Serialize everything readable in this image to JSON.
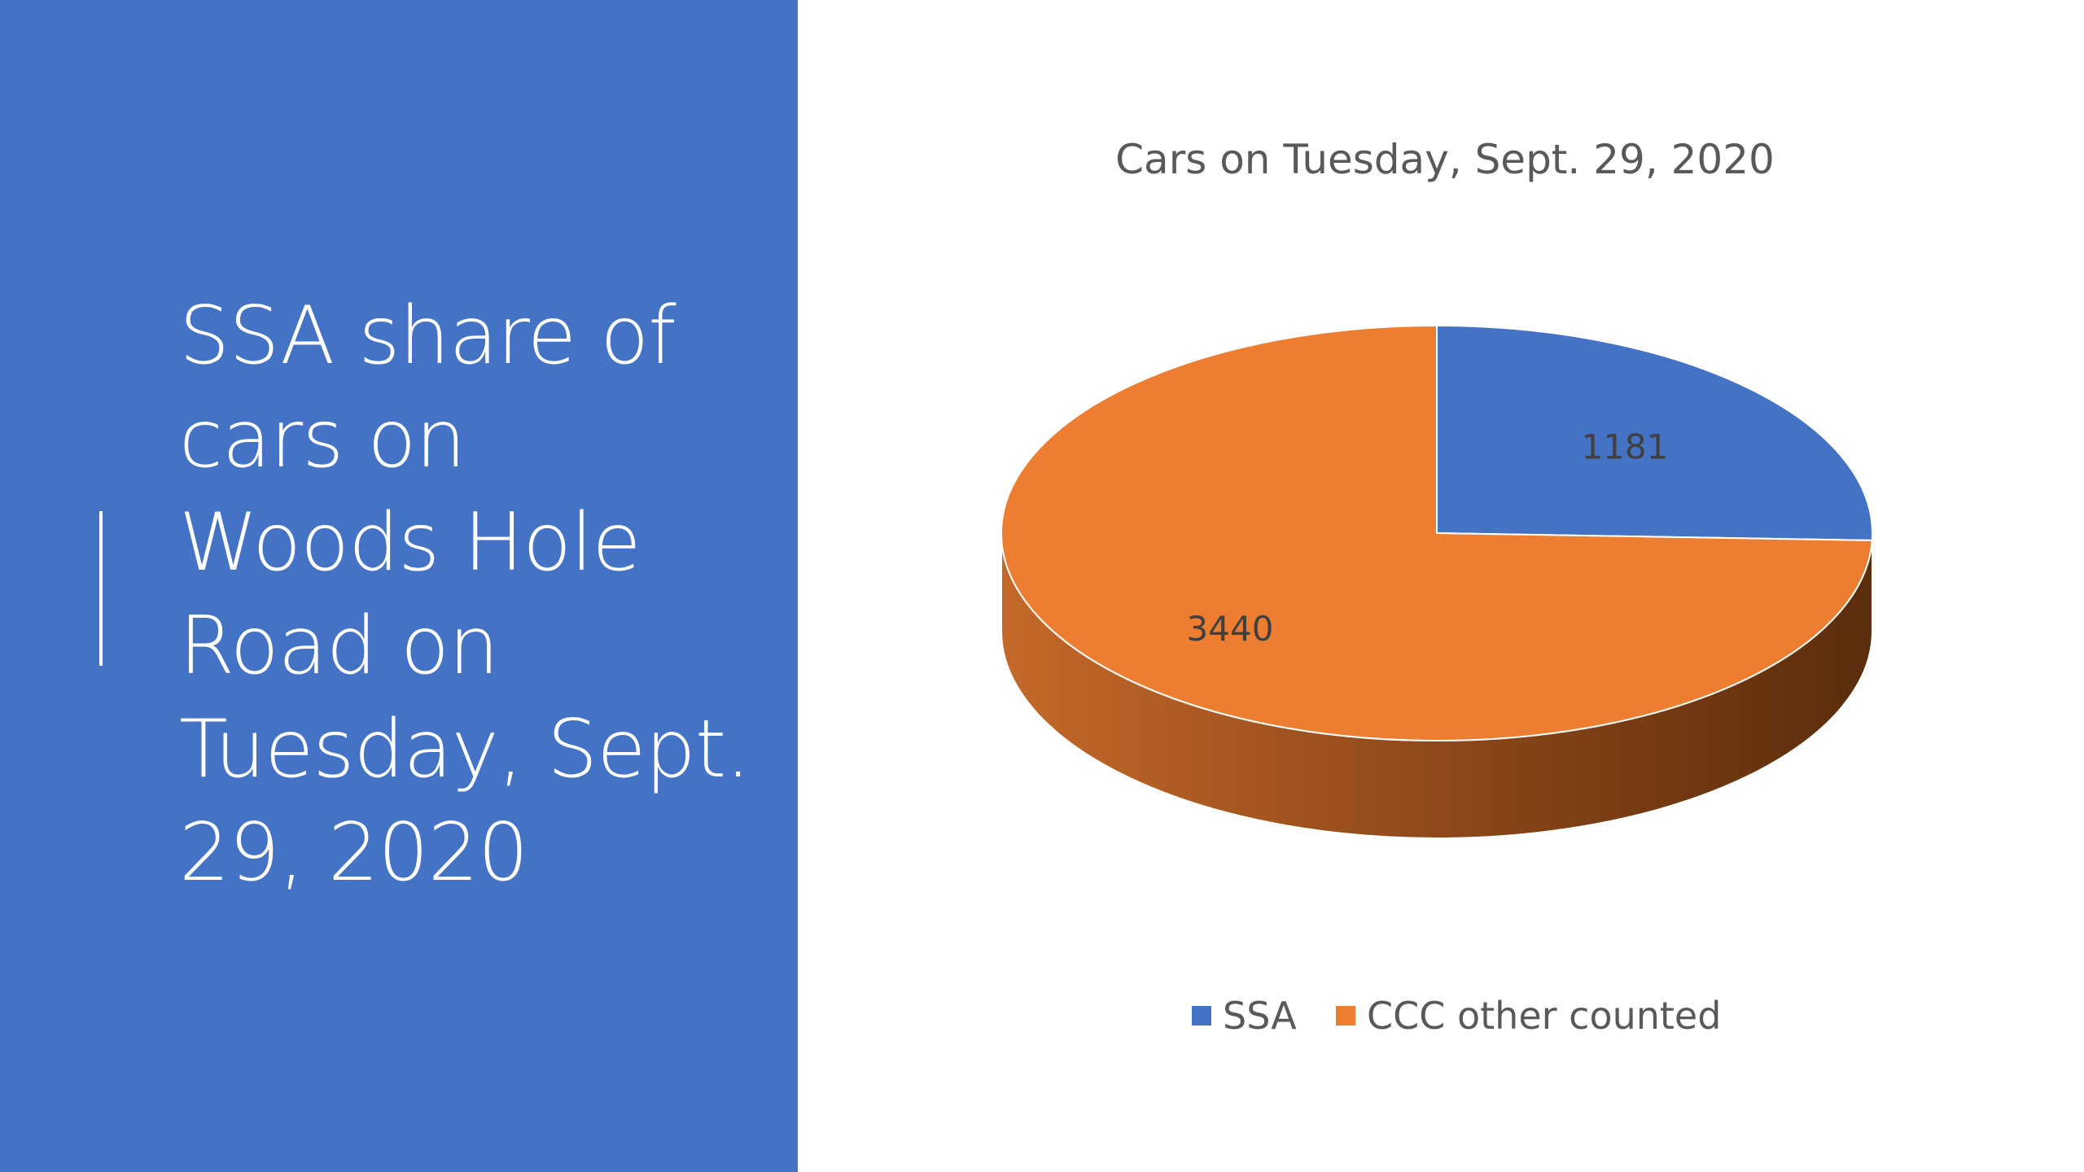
{
  "slide": {
    "title_lines": [
      "SSA share of",
      "cars on",
      "Woods Hole",
      "Road on",
      "Tuesday, Sept.",
      "29, 2020"
    ]
  },
  "colors": {
    "panel": "#4472c4",
    "ssa": "#4472c4",
    "ccc": "#ed7d31",
    "ccc_side_dark": "#5a2d0c",
    "ccc_side_light": "#c4692a"
  },
  "chart_data": {
    "type": "pie",
    "style": "3d",
    "title": "Cars on Tuesday, Sept. 29, 2020",
    "categories": [
      "SSA",
      "CCC other counted"
    ],
    "values": [
      1181,
      3440
    ],
    "data_labels": [
      "1181",
      "3440"
    ],
    "legend": {
      "placement": "bottom",
      "entries": [
        "SSA",
        "CCC other counted"
      ]
    }
  }
}
